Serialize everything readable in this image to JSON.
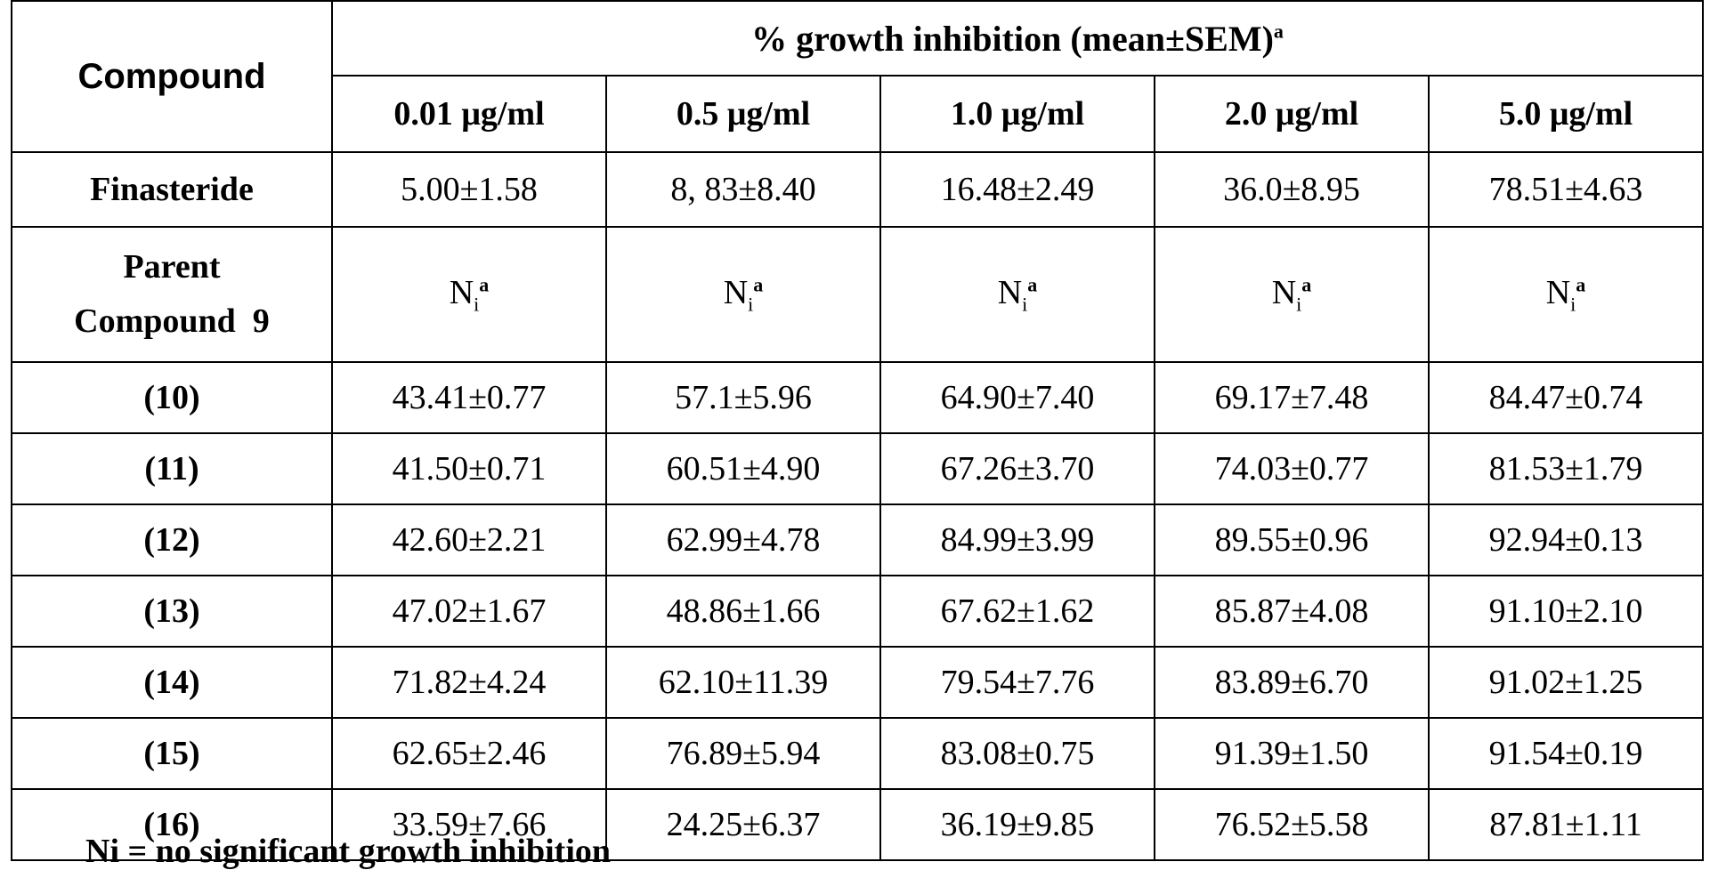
{
  "table": {
    "compound_header": "Compound",
    "main_header": "% growth inhibition (mean±SEM)",
    "main_header_sup": "a",
    "concentrations": [
      "0.01 μg/ml",
      "0.5 μg/ml",
      "1.0 μg/ml",
      "2.0 μg/ml",
      "5.0 μg/ml"
    ],
    "finasteride": {
      "label": "Finasteride",
      "values": [
        "5.00±1.58",
        "8, 83±8.40",
        "16.48±2.49",
        "36.0±8.95",
        "78.51±4.63"
      ]
    },
    "parent": {
      "label_line1": "Parent",
      "label_line2": "Compound  9",
      "ni_base": "N",
      "ni_sub": "i",
      "ni_sup": "a"
    },
    "rows": [
      {
        "label": "(10)",
        "values": [
          "43.41±0.77",
          "57.1±5.96",
          "64.90±7.40",
          "69.17±7.48",
          "84.47±0.74"
        ]
      },
      {
        "label": "(11)",
        "values": [
          "41.50±0.71",
          "60.51±4.90",
          "67.26±3.70",
          "74.03±0.77",
          "81.53±1.79"
        ]
      },
      {
        "label": "(12)",
        "values": [
          "42.60±2.21",
          "62.99±4.78",
          "84.99±3.99",
          "89.55±0.96",
          "92.94±0.13"
        ]
      },
      {
        "label": "(13)",
        "values": [
          "47.02±1.67",
          "48.86±1.66",
          "67.62±1.62",
          "85.87±4.08",
          "91.10±2.10"
        ]
      },
      {
        "label": "(14)",
        "values": [
          "71.82±4.24",
          "62.10±11.39",
          "79.54±7.76",
          "83.89±6.70",
          "91.02±1.25"
        ]
      },
      {
        "label": "(15)",
        "values": [
          "62.65±2.46",
          "76.89±5.94",
          "83.08±0.75",
          "91.39±1.50",
          "91.54±0.19"
        ]
      },
      {
        "label": "(16)",
        "values": [
          "33.59±7.66",
          "24.25±6.37",
          "36.19±9.85",
          "76.52±5.58",
          "87.81±1.11"
        ]
      }
    ]
  },
  "footnote": "Ni = no significant growth inhibition"
}
